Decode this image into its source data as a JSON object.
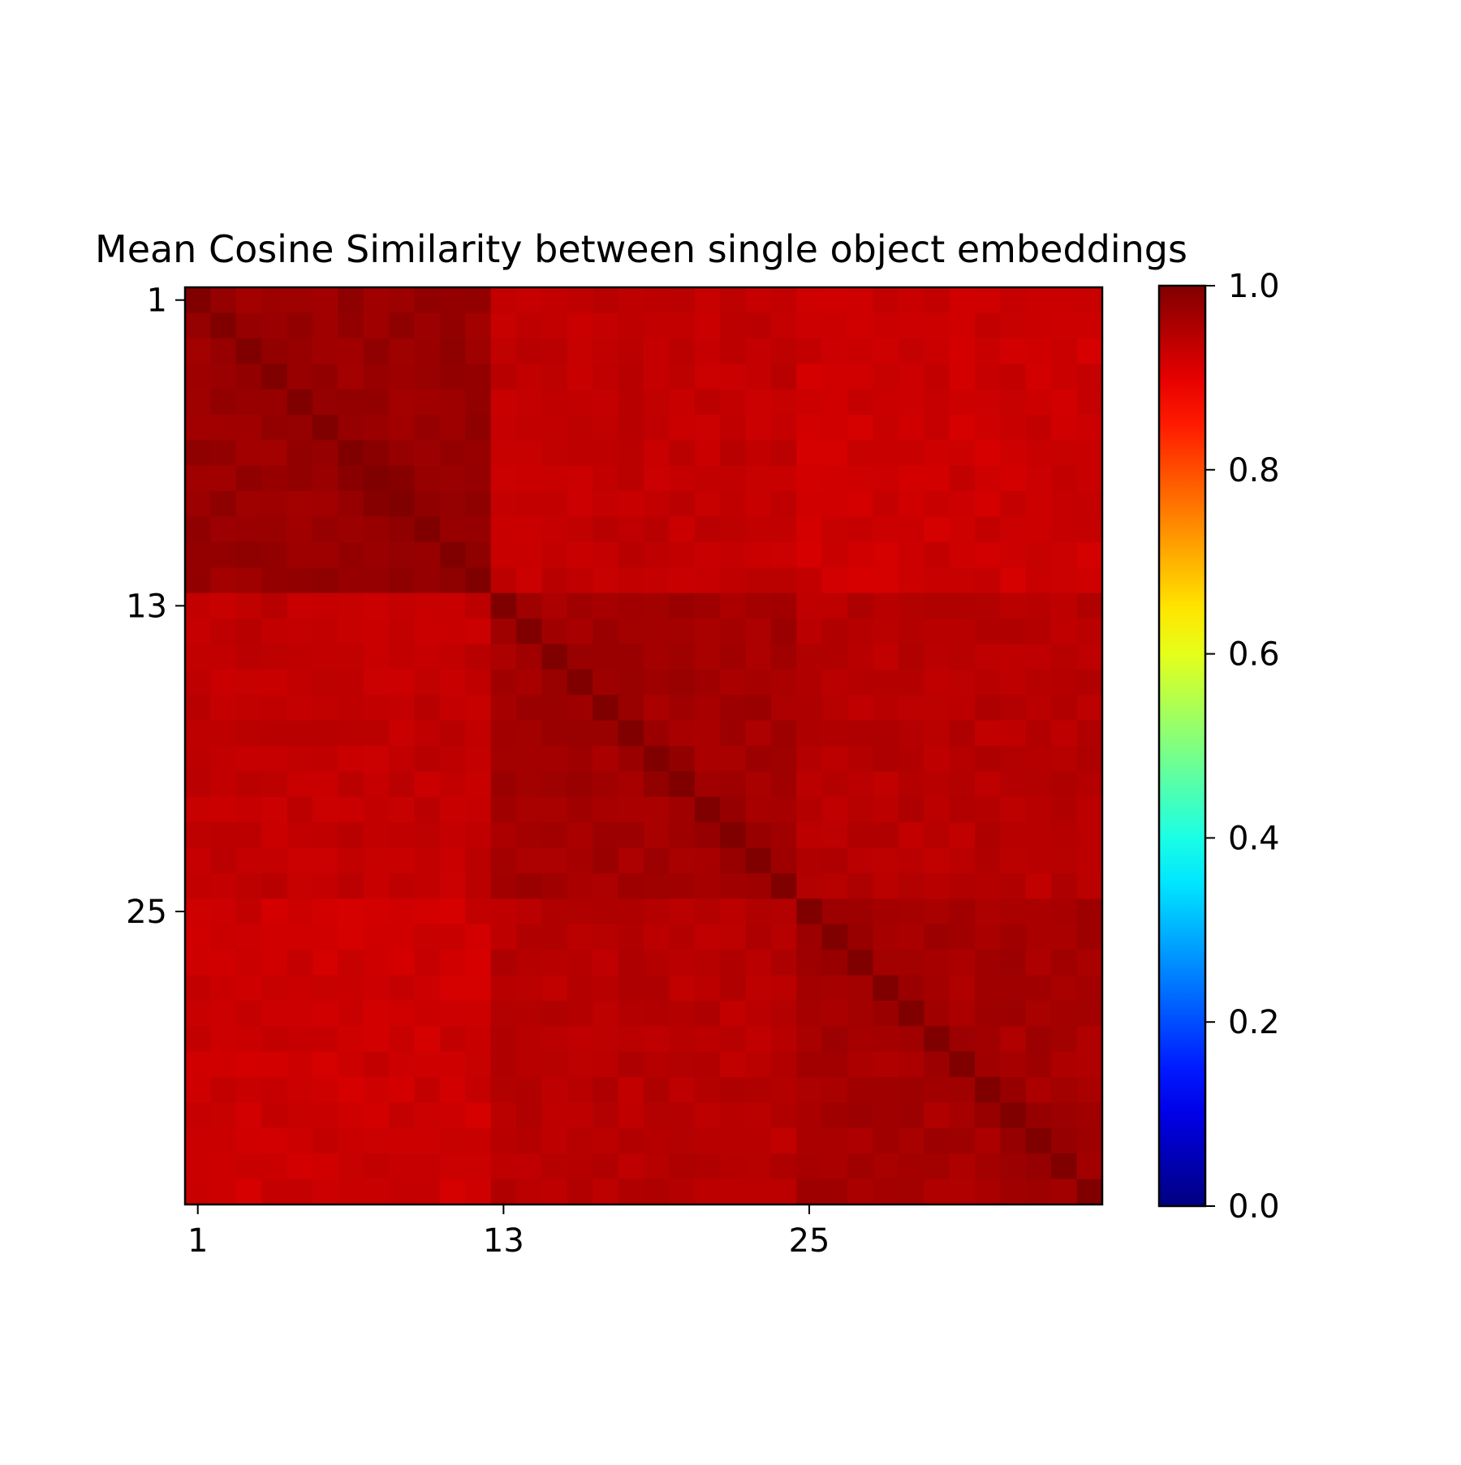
{
  "chart_data": {
    "type": "heatmap",
    "title": "Mean Cosine Similarity between single object embeddings",
    "xlabel": "",
    "ylabel": "",
    "n": 36,
    "x_ticks": [
      1,
      13,
      25
    ],
    "y_ticks": [
      1,
      13,
      25
    ],
    "x_tick_labels": [
      "1",
      "13",
      "25"
    ],
    "y_tick_labels": [
      "1",
      "13",
      "25"
    ],
    "colormap": "jet",
    "vmin": 0.0,
    "vmax": 1.0,
    "colorbar_ticks": [
      0.0,
      0.2,
      0.4,
      0.6,
      0.8,
      1.0
    ],
    "colorbar_tick_labels": [
      "0.0",
      "0.2",
      "0.4",
      "0.6",
      "0.8",
      "1.0"
    ],
    "groups": [
      {
        "range": [
          1,
          12
        ],
        "within_similarity": 0.975,
        "diagonal": 1.0
      },
      {
        "range": [
          13,
          24
        ],
        "within_similarity": 0.965,
        "diagonal": 1.0
      },
      {
        "range": [
          25,
          36
        ],
        "within_similarity": 0.962,
        "diagonal": 1.0
      }
    ],
    "between_group_similarity": [
      [
        0.975,
        0.935,
        0.925
      ],
      [
        0.935,
        0.965,
        0.945
      ],
      [
        0.925,
        0.945,
        0.962
      ]
    ],
    "grid": false
  }
}
